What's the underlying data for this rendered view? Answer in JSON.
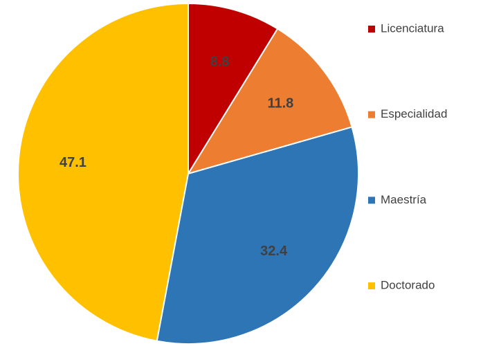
{
  "chart_data": {
    "type": "pie",
    "categories": [
      "Licenciatura",
      "Especialidad",
      "Maestría",
      "Doctorado"
    ],
    "values": [
      8.8,
      11.8,
      32.4,
      47.1
    ],
    "colors": [
      "#C00000",
      "#ED7D31",
      "#2E75B6",
      "#FFC000"
    ],
    "legend": "right"
  }
}
